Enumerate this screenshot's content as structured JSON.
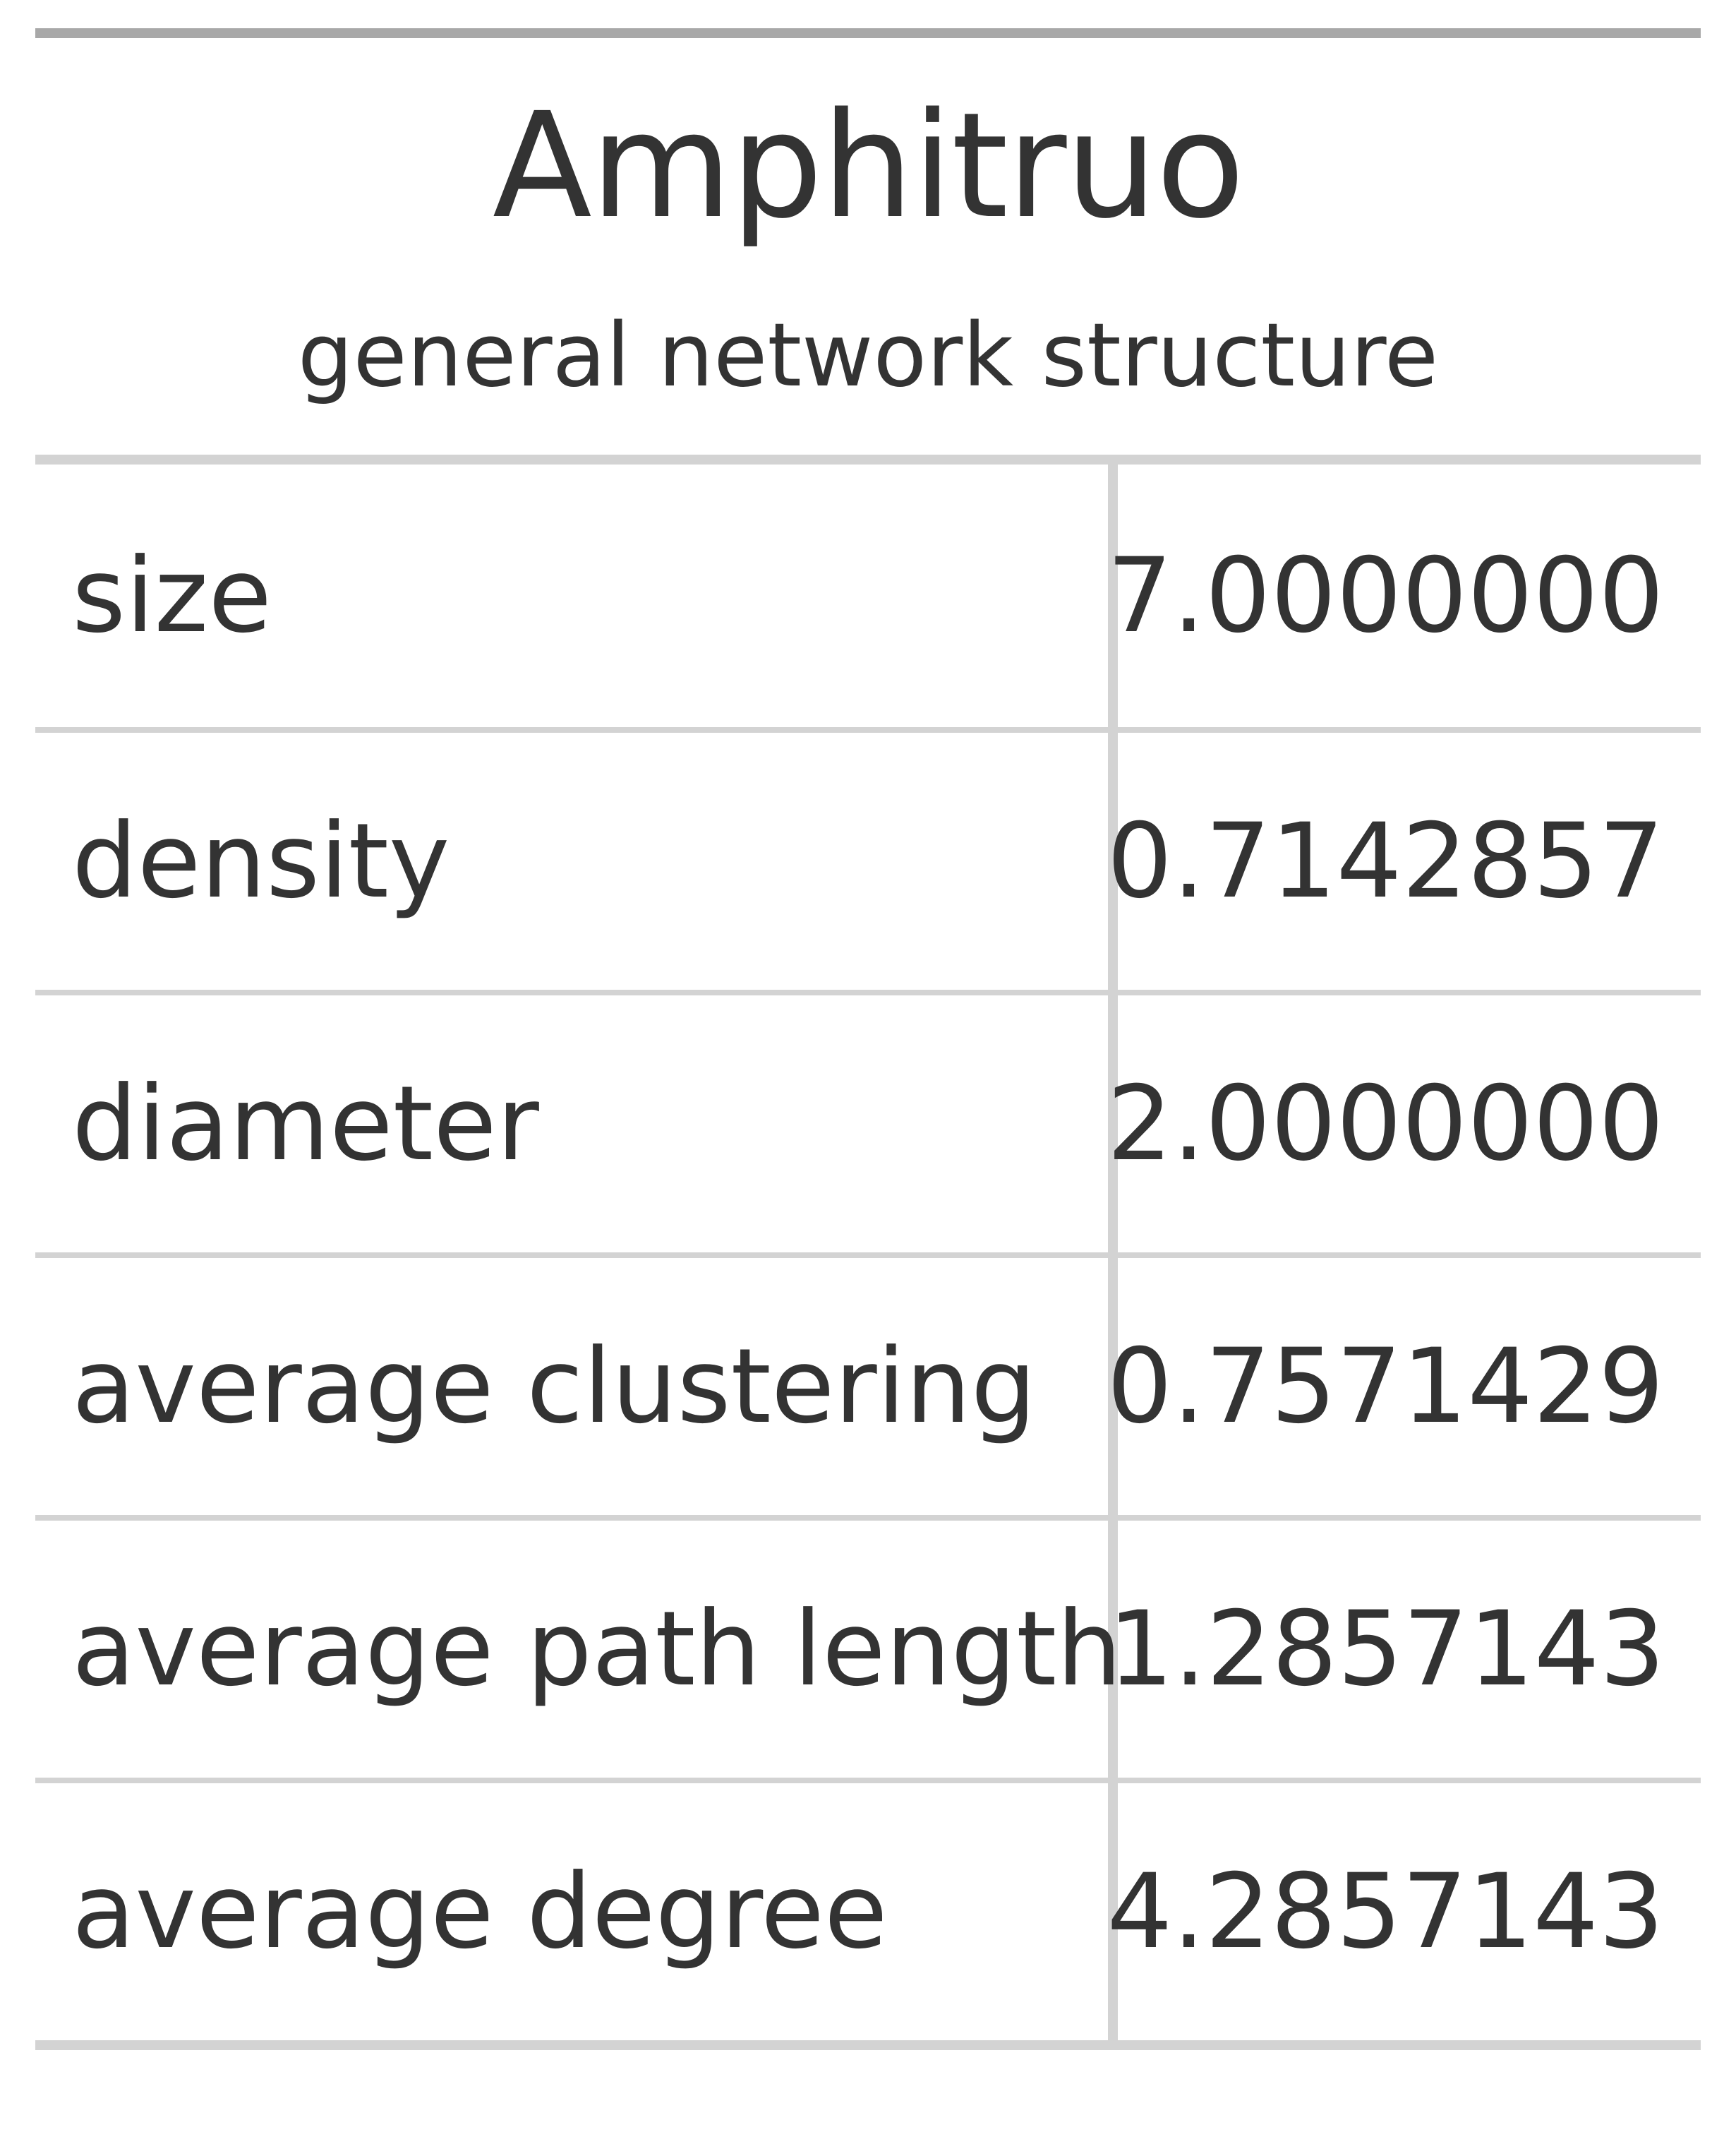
{
  "table": {
    "title": "Amphitruo",
    "subtitle": "general network structure",
    "rows": [
      {
        "label": "size",
        "value": "7.0000000"
      },
      {
        "label": "density",
        "value": "0.7142857"
      },
      {
        "label": "diameter",
        "value": "2.0000000"
      },
      {
        "label": "average clustering",
        "value": "0.7571429"
      },
      {
        "label": "average path length",
        "value": "1.2857143"
      },
      {
        "label": "average degree",
        "value": "4.2857143"
      }
    ]
  }
}
